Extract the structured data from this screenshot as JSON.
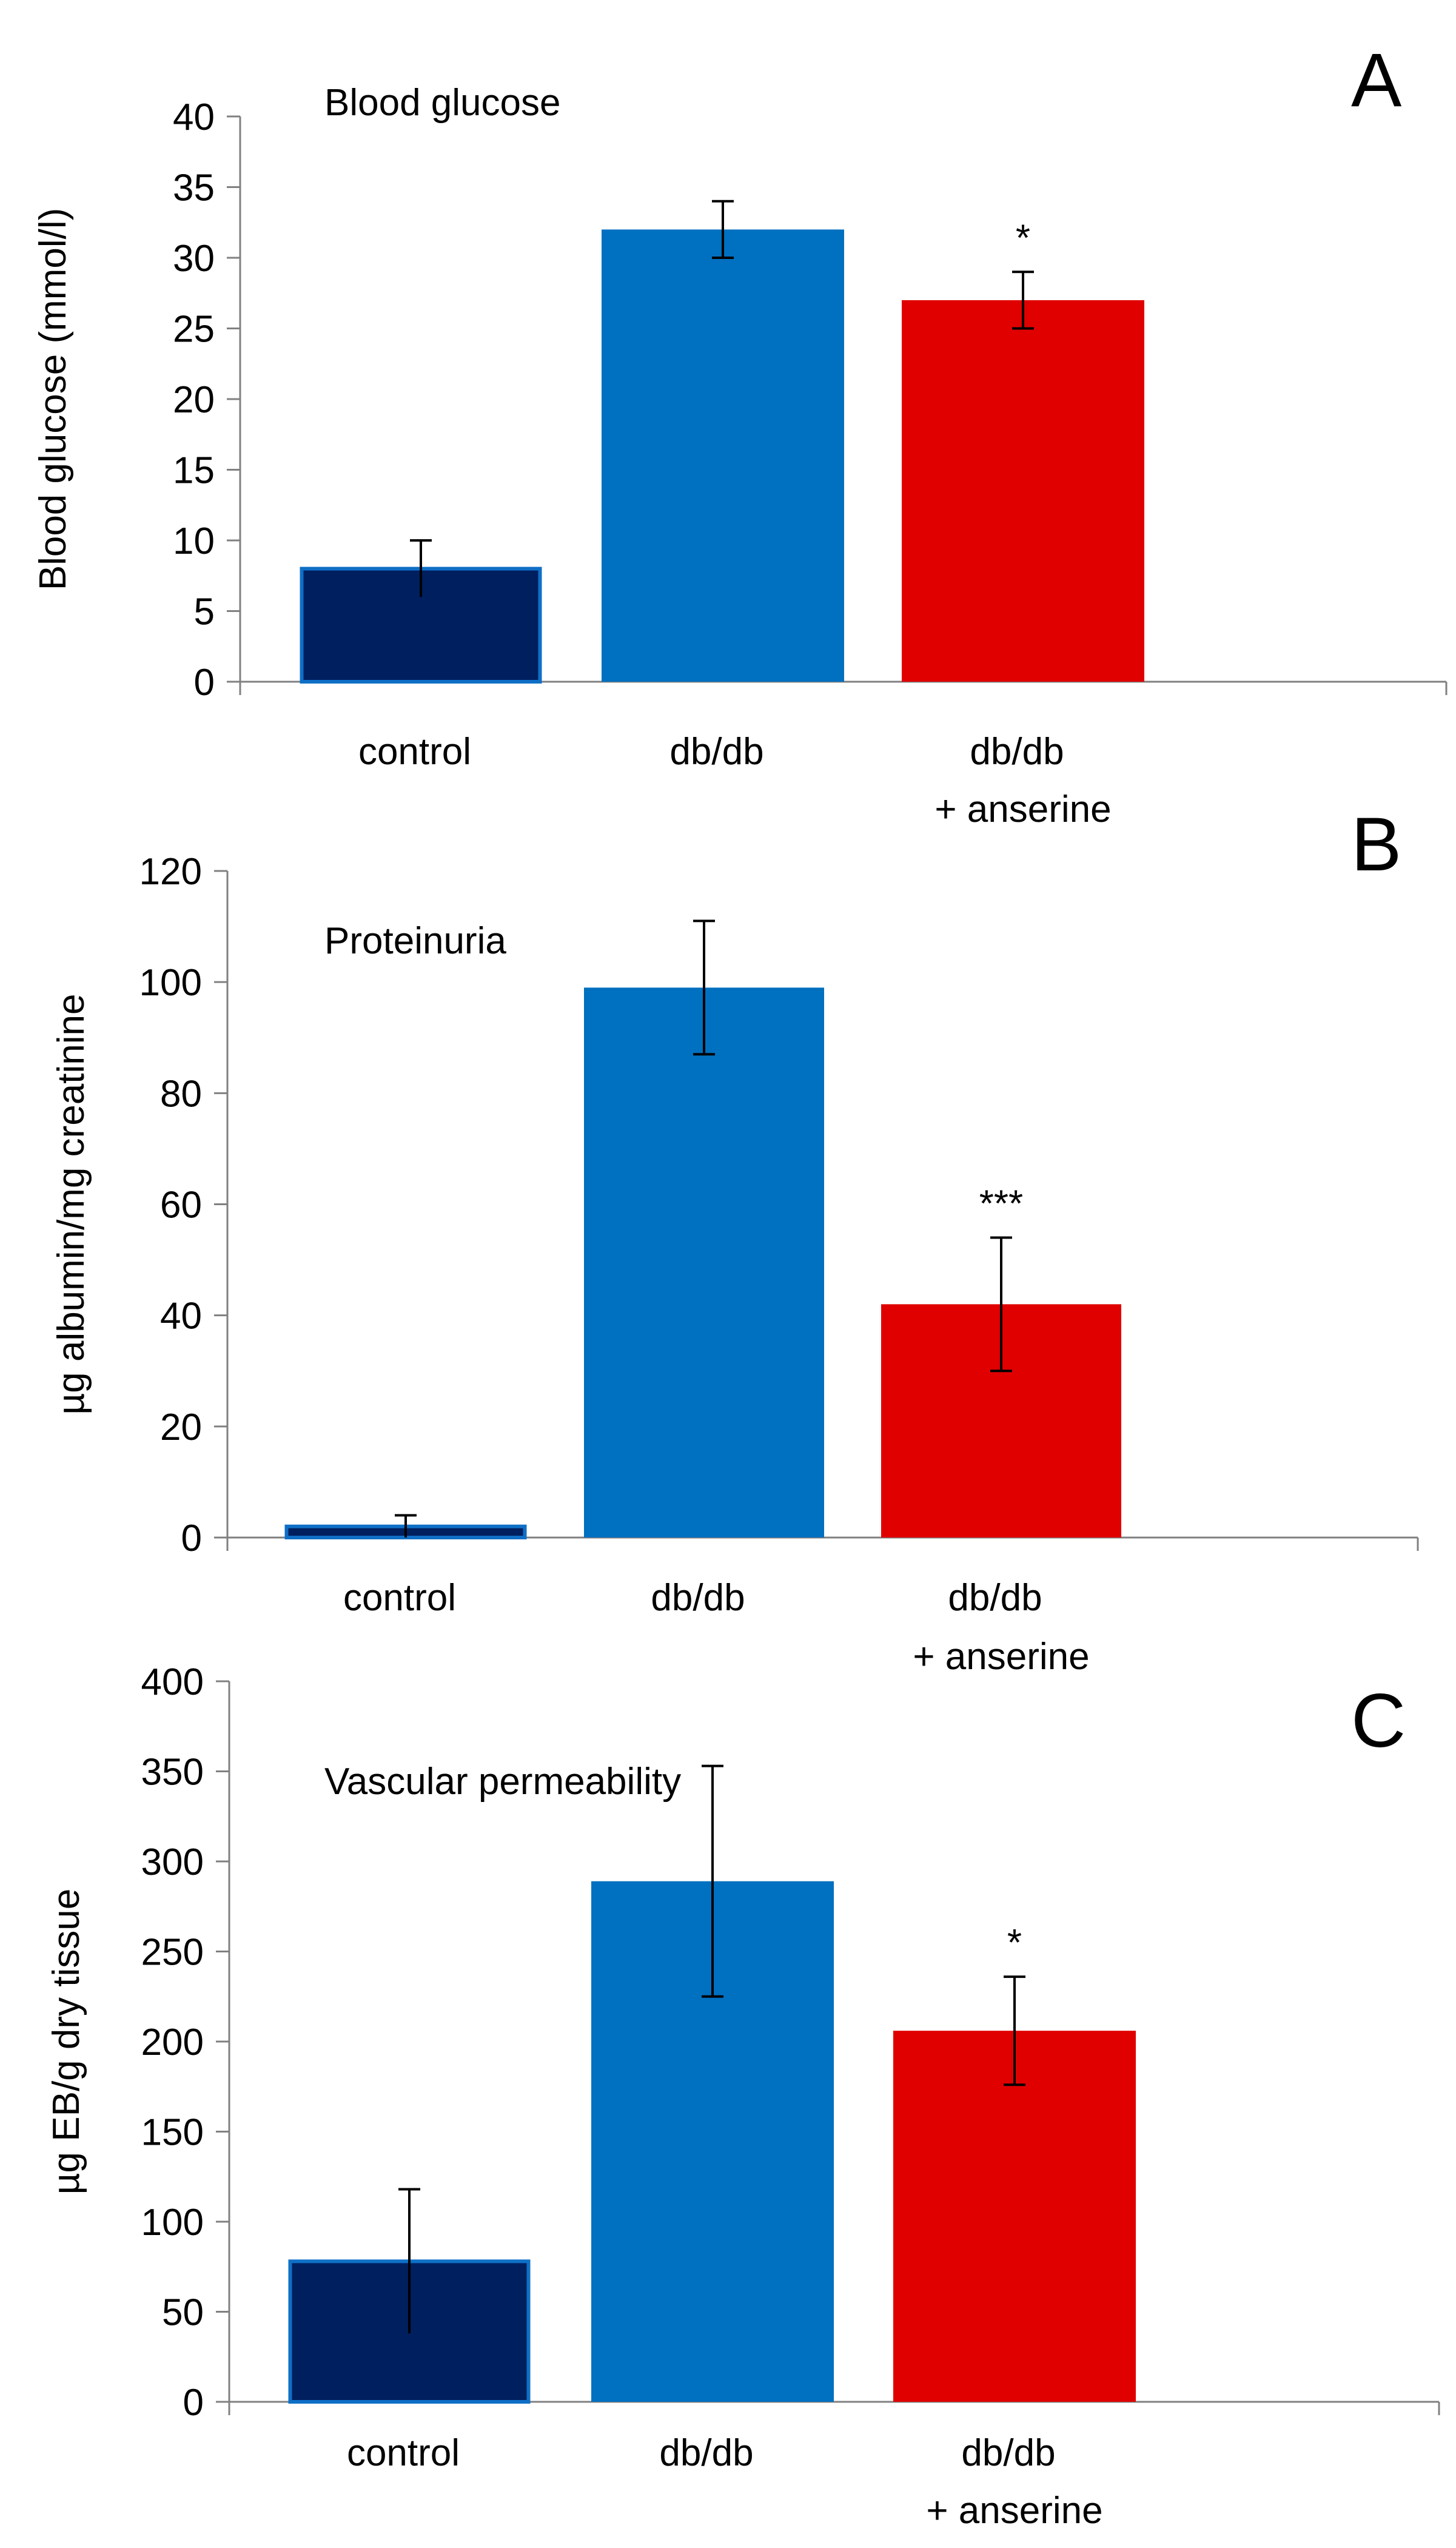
{
  "chart_data": [
    {
      "type": "bar",
      "panel_letter": "A",
      "title": "Blood glucose",
      "ylabel": "Blood glucose (mmol/l)",
      "xlabel": "",
      "ylim": [
        0,
        40
      ],
      "yticks": [
        "0",
        "5",
        "10",
        "15",
        "20",
        "25",
        "30",
        "35",
        "40"
      ],
      "grid": false,
      "categories": [
        {
          "line1": "control",
          "line2": ""
        },
        {
          "line1": "db/db",
          "line2": ""
        },
        {
          "line1": "db/db",
          "line2": "+ anserine"
        }
      ],
      "values": [
        8,
        32,
        27
      ],
      "errors": [
        2,
        2,
        2
      ],
      "significance": [
        "",
        "",
        "*"
      ],
      "colors": [
        "#001F5F",
        "#0070C0",
        "#E00000"
      ],
      "edge_colors": [
        "#0F6FC6",
        "#0070C0",
        "#E00000"
      ]
    },
    {
      "type": "bar",
      "panel_letter": "B",
      "title": "Proteinuria",
      "ylabel": "µg albumin/mg creatinine",
      "xlabel": "",
      "ylim": [
        0,
        120
      ],
      "yticks": [
        "0",
        "20",
        "40",
        "60",
        "80",
        "100",
        "120"
      ],
      "grid": false,
      "categories": [
        {
          "line1": "control",
          "line2": ""
        },
        {
          "line1": "db/db",
          "line2": ""
        },
        {
          "line1": "db/db",
          "line2": "+ anserine"
        }
      ],
      "values": [
        2,
        99,
        42
      ],
      "errors": [
        2,
        12,
        12
      ],
      "significance": [
        "",
        "",
        "***"
      ],
      "colors": [
        "#001F5F",
        "#0070C0",
        "#E00000"
      ],
      "edge_colors": [
        "#0F6FC6",
        "#0070C0",
        "#E00000"
      ]
    },
    {
      "type": "bar",
      "panel_letter": "C",
      "title": "Vascular permeability",
      "ylabel": "µg EB/g dry tissue",
      "xlabel": "",
      "ylim": [
        0,
        400
      ],
      "yticks": [
        "0",
        "50",
        "100",
        "150",
        "200",
        "250",
        "300",
        "350",
        "400"
      ],
      "grid": false,
      "categories": [
        {
          "line1": "control",
          "line2": ""
        },
        {
          "line1": "db/db",
          "line2": ""
        },
        {
          "line1": "db/db",
          "line2": "+ anserine"
        }
      ],
      "values": [
        78,
        289,
        206
      ],
      "errors": [
        40,
        64,
        30
      ],
      "significance": [
        "",
        "",
        "*"
      ],
      "colors": [
        "#001F5F",
        "#0070C0",
        "#E00000"
      ],
      "edge_colors": [
        "#0F6FC6",
        "#0070C0",
        "#E00000"
      ]
    }
  ]
}
